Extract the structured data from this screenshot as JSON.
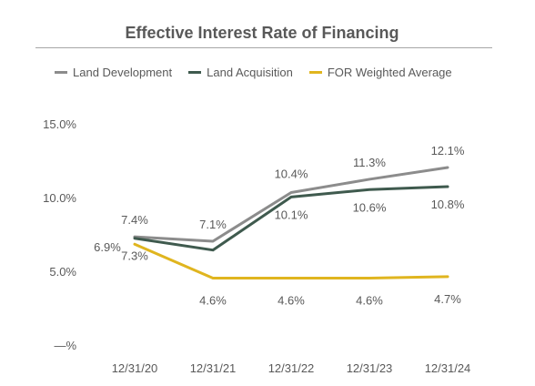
{
  "chart_data": {
    "type": "line",
    "title": "Effective Interest Rate of Financing",
    "categories": [
      "12/31/20",
      "12/31/21",
      "12/31/22",
      "12/31/23",
      "12/31/24"
    ],
    "y_ticks": [
      "—%",
      "5.0%",
      "10.0%",
      "15.0%"
    ],
    "ylim": [
      0,
      15
    ],
    "grid": false,
    "legend_position": "top",
    "series": [
      {
        "name": "Land Development",
        "color": "#8c8c8c",
        "values": [
          7.4,
          7.1,
          10.4,
          11.3,
          12.1
        ],
        "labels": [
          "7.4%",
          "7.1%",
          "10.4%",
          "11.3%",
          "12.1%"
        ],
        "label_side": "above"
      },
      {
        "name": "Land Acquisition",
        "color": "#3f5a4e",
        "values": [
          7.3,
          6.5,
          10.1,
          10.6,
          10.8
        ],
        "labels": [
          "7.3%",
          "",
          "10.1%",
          "10.6%",
          "10.8%"
        ],
        "label_side": "below"
      },
      {
        "name": "FOR Weighted Average",
        "color": "#e0b51f",
        "values": [
          6.9,
          4.6,
          4.6,
          4.6,
          4.7
        ],
        "labels": [
          "6.9%",
          "4.6%",
          "4.6%",
          "4.6%",
          "4.7%"
        ],
        "label_side": "below"
      }
    ]
  }
}
